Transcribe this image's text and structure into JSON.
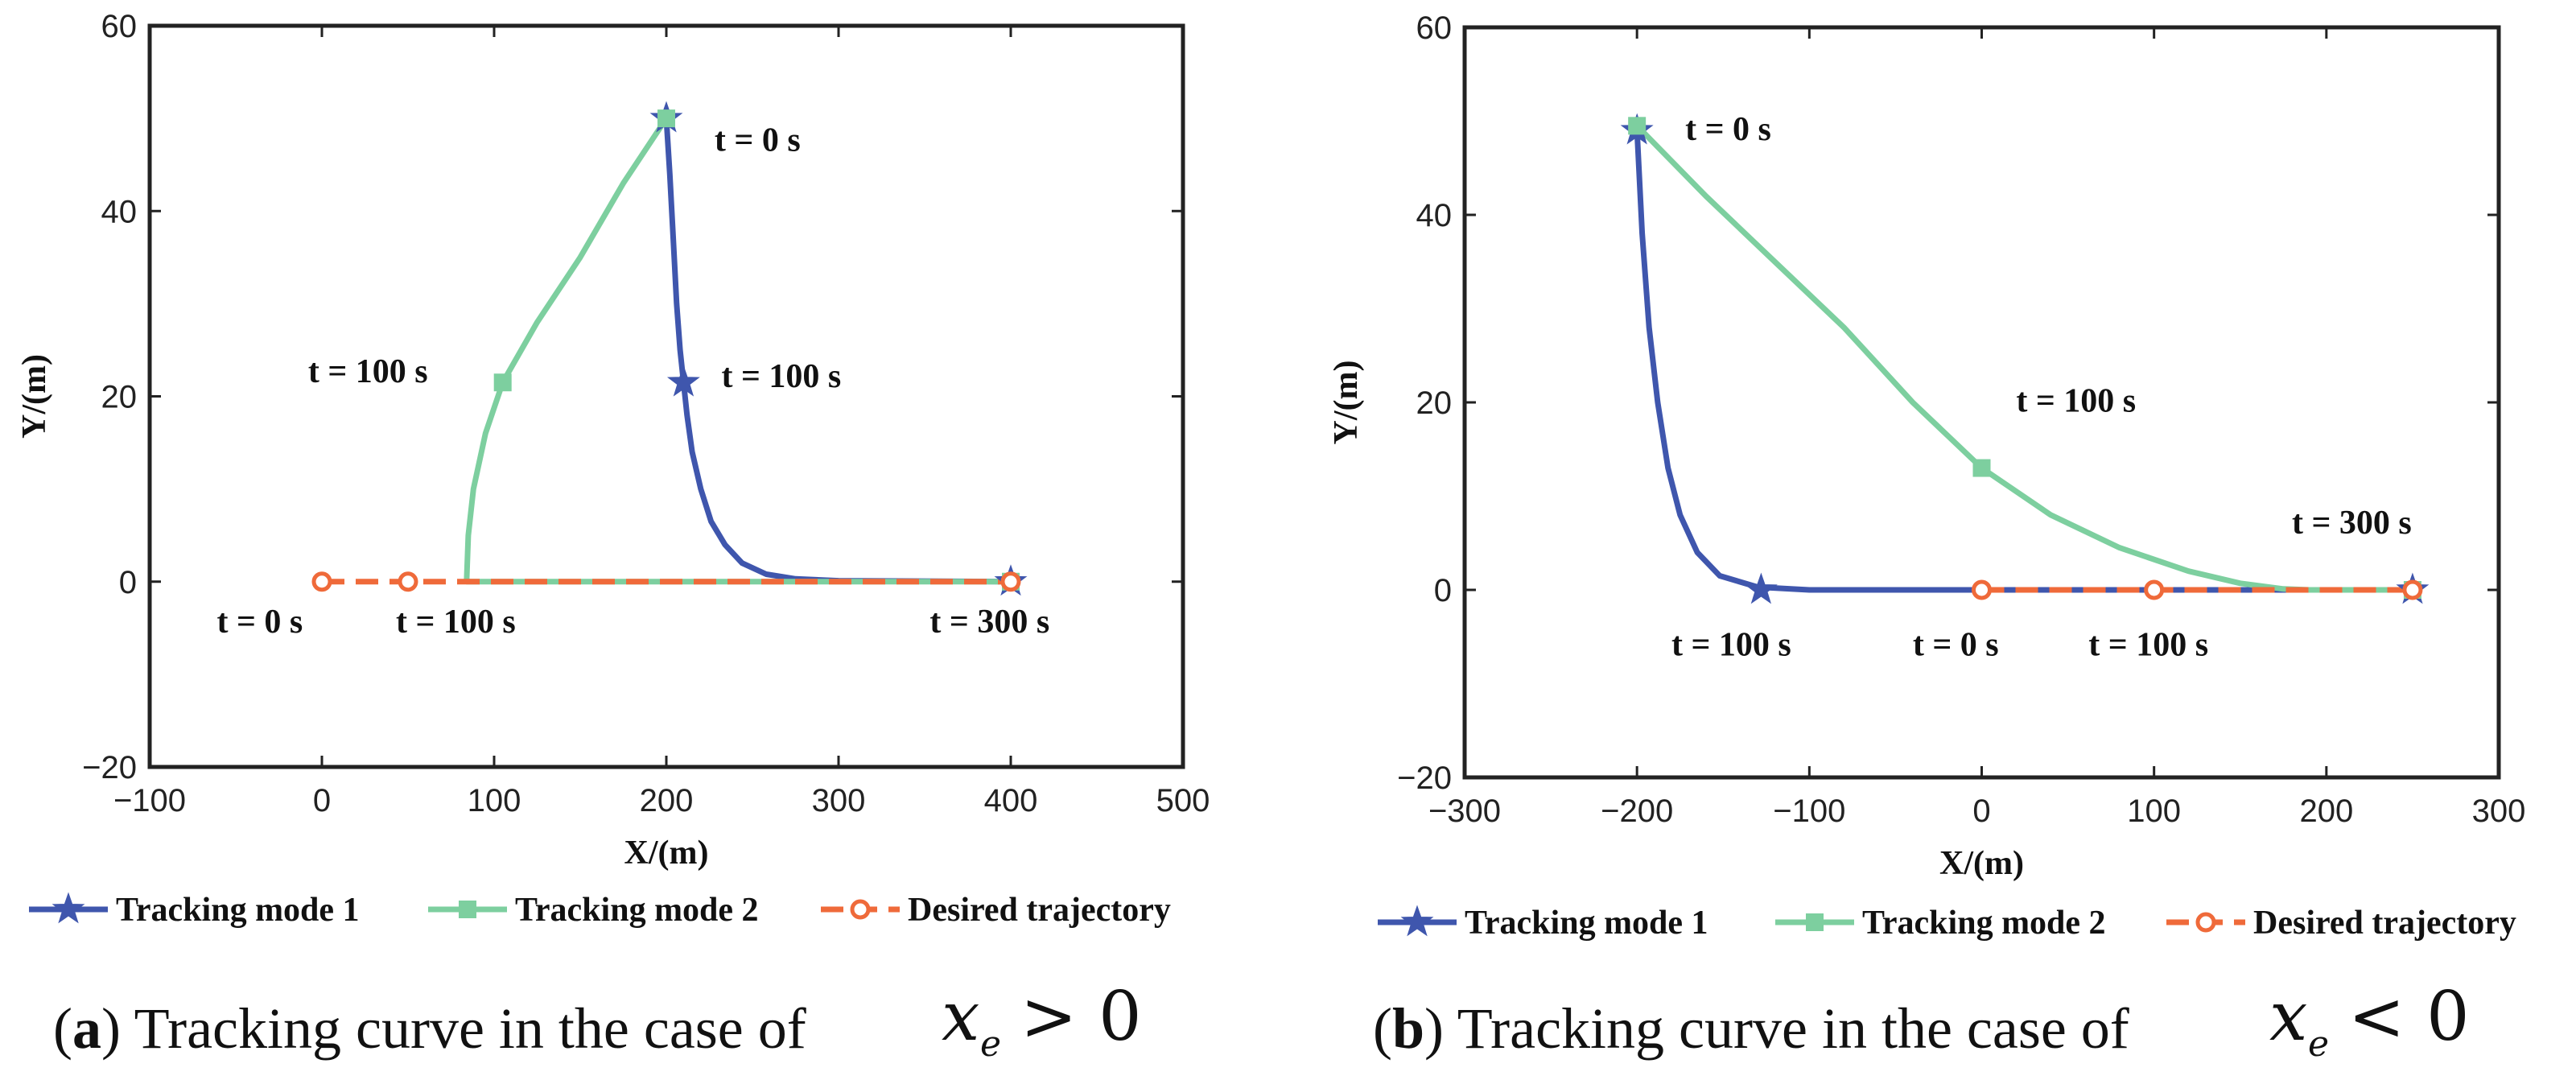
{
  "colors": {
    "mode1": "#3f56ad",
    "mode2": "#7dcf9f",
    "desired": "#ef6a3a"
  },
  "chart_data": [
    {
      "type": "line",
      "id": "a",
      "xlabel": "X/(m)",
      "ylabel": "Y/(m)",
      "xlim": [
        -100,
        500
      ],
      "ylim": [
        -20,
        60
      ],
      "xticks": [
        -100,
        0,
        100,
        200,
        300,
        400,
        500
      ],
      "yticks": [
        -20,
        0,
        20,
        40,
        60
      ],
      "xtick_labels": [
        "−100",
        "0",
        "100",
        "200",
        "300",
        "400",
        "500"
      ],
      "ytick_labels": [
        "−20",
        "0",
        "20",
        "40",
        "60"
      ],
      "series": [
        {
          "name": "Tracking mode 1",
          "marker": "star",
          "dashed": false,
          "x": [
            200,
            202,
            204,
            206,
            208,
            210,
            212,
            215,
            220,
            226,
            234,
            244,
            258,
            275,
            300,
            400
          ],
          "y": [
            50,
            44,
            37,
            30,
            25,
            21.5,
            18,
            14,
            10,
            6.5,
            4,
            2,
            0.8,
            0.3,
            0.1,
            0
          ],
          "markers": [
            {
              "x": 200,
              "y": 50
            },
            {
              "x": 210,
              "y": 21.5
            },
            {
              "x": 400,
              "y": 0
            }
          ]
        },
        {
          "name": "Tracking mode 2",
          "marker": "square",
          "dashed": false,
          "x": [
            200,
            175,
            150,
            125,
            105,
            95,
            88,
            85,
            84,
            400
          ],
          "y": [
            50,
            43,
            35,
            28,
            21.5,
            16,
            10,
            5,
            0,
            0
          ],
          "markers": [
            {
              "x": 200,
              "y": 50
            },
            {
              "x": 105,
              "y": 21.5
            },
            {
              "x": 400,
              "y": 0
            }
          ]
        },
        {
          "name": "Desired trajectory",
          "marker": "circle",
          "dashed": true,
          "x": [
            0,
            400
          ],
          "y": [
            0,
            0
          ],
          "markers": [
            {
              "x": 0,
              "y": 0
            },
            {
              "x": 50,
              "y": 0
            },
            {
              "x": 400,
              "y": 0
            }
          ]
        }
      ],
      "annotations": [
        {
          "text": "t = 0 s",
          "x": 228,
          "y": 46.5
        },
        {
          "text": "t = 100 s",
          "x": 232,
          "y": 21
        },
        {
          "text": "t = 100 s",
          "x": -8,
          "y": 21.5
        },
        {
          "text": "t = 0 s",
          "x": -61,
          "y": -5.5
        },
        {
          "text": "t = 100 s",
          "x": 43,
          "y": -5.5
        },
        {
          "text": "t = 300 s",
          "x": 353,
          "y": -5.5
        }
      ]
    },
    {
      "type": "line",
      "id": "b",
      "xlabel": "X/(m)",
      "ylabel": "Y/(m)",
      "xlim": [
        -300,
        300
      ],
      "ylim": [
        -20,
        60
      ],
      "xticks": [
        -300,
        -200,
        -100,
        0,
        100,
        200,
        300
      ],
      "yticks": [
        -20,
        0,
        20,
        40,
        60
      ],
      "xtick_labels": [
        "−300",
        "−200",
        "−100",
        "0",
        "100",
        "200",
        "300"
      ],
      "ytick_labels": [
        "−20",
        "0",
        "20",
        "40",
        "60"
      ],
      "series": [
        {
          "name": "Tracking mode 1",
          "marker": "star",
          "dashed": false,
          "x": [
            -200,
            -197,
            -193,
            -188,
            -182,
            -175,
            -165,
            -152,
            -130,
            -100,
            0,
            250
          ],
          "y": [
            49,
            38,
            28,
            20,
            13,
            8,
            4,
            1.5,
            0.3,
            0,
            0,
            0
          ],
          "markers": [
            {
              "x": -200,
              "y": 49
            },
            {
              "x": -128,
              "y": 0
            },
            {
              "x": 250,
              "y": 0
            }
          ]
        },
        {
          "name": "Tracking mode 2",
          "marker": "square",
          "dashed": false,
          "x": [
            -200,
            -160,
            -120,
            -80,
            -40,
            0,
            40,
            80,
            120,
            150,
            175,
            190,
            250
          ],
          "y": [
            49.5,
            42,
            35,
            28,
            20,
            13,
            8,
            4.5,
            2,
            0.7,
            0.1,
            0,
            0
          ],
          "markers": [
            {
              "x": -200,
              "y": 49.5
            },
            {
              "x": 0,
              "y": 13
            },
            {
              "x": 250,
              "y": 0
            }
          ]
        },
        {
          "name": "Desired trajectory",
          "marker": "circle",
          "dashed": true,
          "x": [
            0,
            250
          ],
          "y": [
            0,
            0
          ],
          "markers": [
            {
              "x": 0,
              "y": 0
            },
            {
              "x": 100,
              "y": 0
            },
            {
              "x": 250,
              "y": 0
            }
          ]
        }
      ],
      "annotations": [
        {
          "text": "t = 0 s",
          "x": -172,
          "y": 48
        },
        {
          "text": "t = 100 s",
          "x": 20,
          "y": 19
        },
        {
          "text": "t = 300 s",
          "x": 180,
          "y": 6
        },
        {
          "text": "t = 100 s",
          "x": -180,
          "y": -7
        },
        {
          "text": "t = 0 s",
          "x": -40,
          "y": -7
        },
        {
          "text": "t = 100 s",
          "x": 62,
          "y": -7
        }
      ]
    }
  ],
  "legend": {
    "items": [
      "Tracking mode 1",
      "Tracking mode 2",
      "Desired trajectory"
    ]
  },
  "captions": {
    "a": {
      "tag": "a",
      "text": " Tracking curve in the case of",
      "var": "x",
      "sub": "e",
      "op": "> 0"
    },
    "b": {
      "tag": "b",
      "text": " Tracking curve in the case of",
      "var": "x",
      "sub": "e",
      "op": "< 0"
    }
  }
}
